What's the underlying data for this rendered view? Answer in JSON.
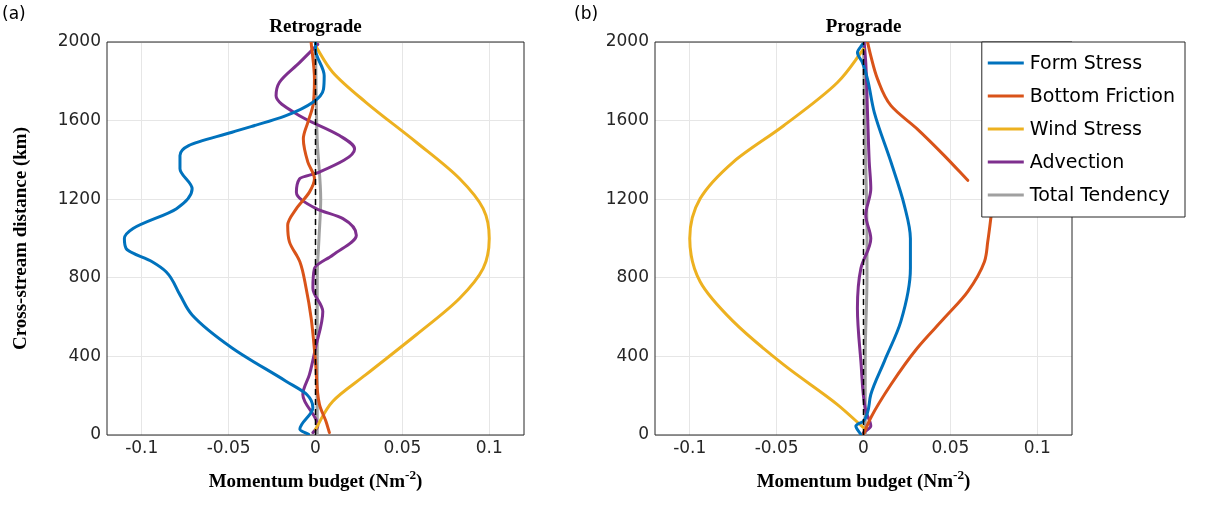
{
  "chart_data": [
    {
      "type": "line",
      "title": "Retrograde",
      "xlabel": "Momentum budget (Nm$^{-2}$)",
      "ylabel": "Cross-stream distance (km)",
      "annotations": [
        "(a)"
      ],
      "xlim": [
        -0.12,
        0.12
      ],
      "xticks": [
        -0.1,
        -0.05,
        0,
        0.05,
        0.1
      ],
      "ylim": [
        0,
        2000
      ],
      "yticks": [
        0,
        400,
        800,
        1200,
        1600,
        2000
      ],
      "grid": true,
      "legend": false,
      "ref_lines": [
        {
          "axis": "x",
          "value": 0,
          "color": "#000000",
          "line_style": "dashed"
        }
      ],
      "series": [
        {
          "color": "#0072bd",
          "x": [
            -0.004,
            -0.009,
            -0.0015,
            -0.005,
            -0.017,
            -0.048,
            -0.071,
            -0.078,
            -0.086,
            -0.094,
            -0.109,
            -0.11,
            -0.105,
            -0.08,
            -0.071,
            -0.078,
            -0.078,
            -0.073,
            -0.048,
            -0.017,
            -0.0015,
            0.0046,
            0.005,
            0,
            0
          ],
          "values": [
            3,
            29,
            139,
            206,
            274,
            443,
            611,
            713,
            831,
            882,
            949,
            1000,
            1051,
            1152,
            1253,
            1355,
            1422,
            1473,
            1541,
            1625,
            1693,
            1760,
            1828,
            1963,
            2000
          ]
        },
        {
          "color": "#d95319",
          "x": [
            0.008,
            0.006,
            0.0023,
            0,
            -0.0025,
            -0.0054,
            -0.009,
            -0.015,
            -0.016,
            -0.011,
            -0.0035,
            -0.0006,
            -0.0044,
            -0.007,
            -0.0044,
            -0.0015,
            -0.0006,
            -0.0025
          ],
          "values": [
            12,
            70,
            155,
            375,
            595,
            747,
            882,
            983,
            1068,
            1152,
            1236,
            1304,
            1389,
            1507,
            1591,
            1676,
            1811,
            1997
          ]
        },
        {
          "color": "#edb120",
          "x": [
            0,
            0.01,
            0.029,
            0.058,
            0.083,
            0.0965,
            0.1,
            0.0965,
            0.083,
            0.058,
            0.029,
            0.01,
            0
          ],
          "values": [
            29,
            172,
            307,
            510,
            696,
            848,
            1000,
            1152,
            1304,
            1490,
            1693,
            1845,
            1980
          ]
        },
        {
          "color": "#7e2f8e",
          "x": [
            -0.0015,
            0.0013,
            -0.0073,
            -0.0035,
            0,
            0.0042,
            -0.0015,
            -0.0006,
            0.01,
            0.0235,
            0.0158,
            0.0004,
            -0.011,
            -0.0092,
            0.0023,
            0.0225,
            0.0138,
            -0.0092,
            -0.0227,
            -0.0208,
            -0.0092,
            0.0013
          ],
          "values": [
            12,
            46,
            206,
            307,
            443,
            628,
            747,
            848,
            916,
            1017,
            1101,
            1152,
            1236,
            1304,
            1338,
            1456,
            1524,
            1625,
            1726,
            1794,
            1895,
            1988
          ]
        },
        {
          "color": "#a0a0a0",
          "x": [
            0.001,
            0.001,
            0.001,
            0.002,
            0.003,
            0.001,
            0
          ],
          "values": [
            0,
            400,
            800,
            1000,
            1200,
            1500,
            2000
          ]
        }
      ]
    },
    {
      "type": "line",
      "title": "Prograde",
      "xlabel": "Momentum budget (Nm$^{-2}$)",
      "annotations": [
        "(b)"
      ],
      "xlim": [
        -0.12,
        0.12
      ],
      "xticks": [
        -0.1,
        -0.05,
        0,
        0.05,
        0.1
      ],
      "ylim": [
        0,
        2000
      ],
      "yticks": [
        0,
        400,
        800,
        1200,
        1600,
        2000
      ],
      "grid": true,
      "legend": "top right",
      "ref_lines": [
        {
          "axis": "x",
          "value": 0,
          "color": "#000000",
          "line_style": "dashed"
        }
      ],
      "series": [
        {
          "name": "Form Stress",
          "color": "#0072bd",
          "x": [
            -0.0015,
            -0.0044,
            0,
            0.0042,
            0.012,
            0.0215,
            0.027,
            0.027,
            0.0235,
            0.0158,
            0.0062,
            0.0023,
            -0.0006,
            -0.0035,
            -0.0006
          ],
          "values": [
            3,
            46,
            71,
            206,
            375,
            578,
            848,
            1000,
            1169,
            1389,
            1642,
            1811,
            1895,
            1946,
            1988
          ]
        },
        {
          "name": "Bottom Friction",
          "color": "#d95319",
          "x": [
            0,
            0.0042,
            0.0158,
            0.031,
            0.0465,
            0.06,
            0.0696,
            0.0715,
            0.0735,
            null,
            0.06,
            0.0465,
            0.031,
            0.0158,
            0.0081,
            0.0042,
            0.0023
          ],
          "values": [
            3,
            88,
            257,
            443,
            595,
            730,
            882,
            983,
            1118,
            null,
            1296,
            1422,
            1557,
            1676,
            1811,
            1929,
            2000
          ]
        },
        {
          "name": "Wind Stress",
          "color": "#edb120",
          "x": [
            0,
            -0.015,
            -0.046,
            -0.075,
            -0.094,
            -0.1,
            -0.094,
            -0.075,
            -0.046,
            -0.015,
            0
          ],
          "values": [
            37,
            155,
            358,
            578,
            780,
            1000,
            1203,
            1389,
            1574,
            1794,
            1963
          ]
        },
        {
          "name": "Advection",
          "color": "#7e2f8e",
          "x": [
            0,
            0.0042,
            0.0013,
            -0.0015,
            -0.0035,
            -0.0015,
            0.0042,
            0.0013,
            0.0042,
            0.0033,
            0.0023,
            0.0013,
            0.0004
          ],
          "values": [
            12,
            46,
            122,
            375,
            645,
            848,
            1000,
            1118,
            1253,
            1389,
            1642,
            1895,
            1997
          ]
        },
        {
          "name": "Total Tendency",
          "color": "#a0a0a0",
          "x": [
            0.001,
            0.001,
            0.002,
            0.002,
            0.001,
            0
          ],
          "values": [
            0,
            400,
            800,
            1000,
            1500,
            2000
          ]
        }
      ]
    }
  ]
}
